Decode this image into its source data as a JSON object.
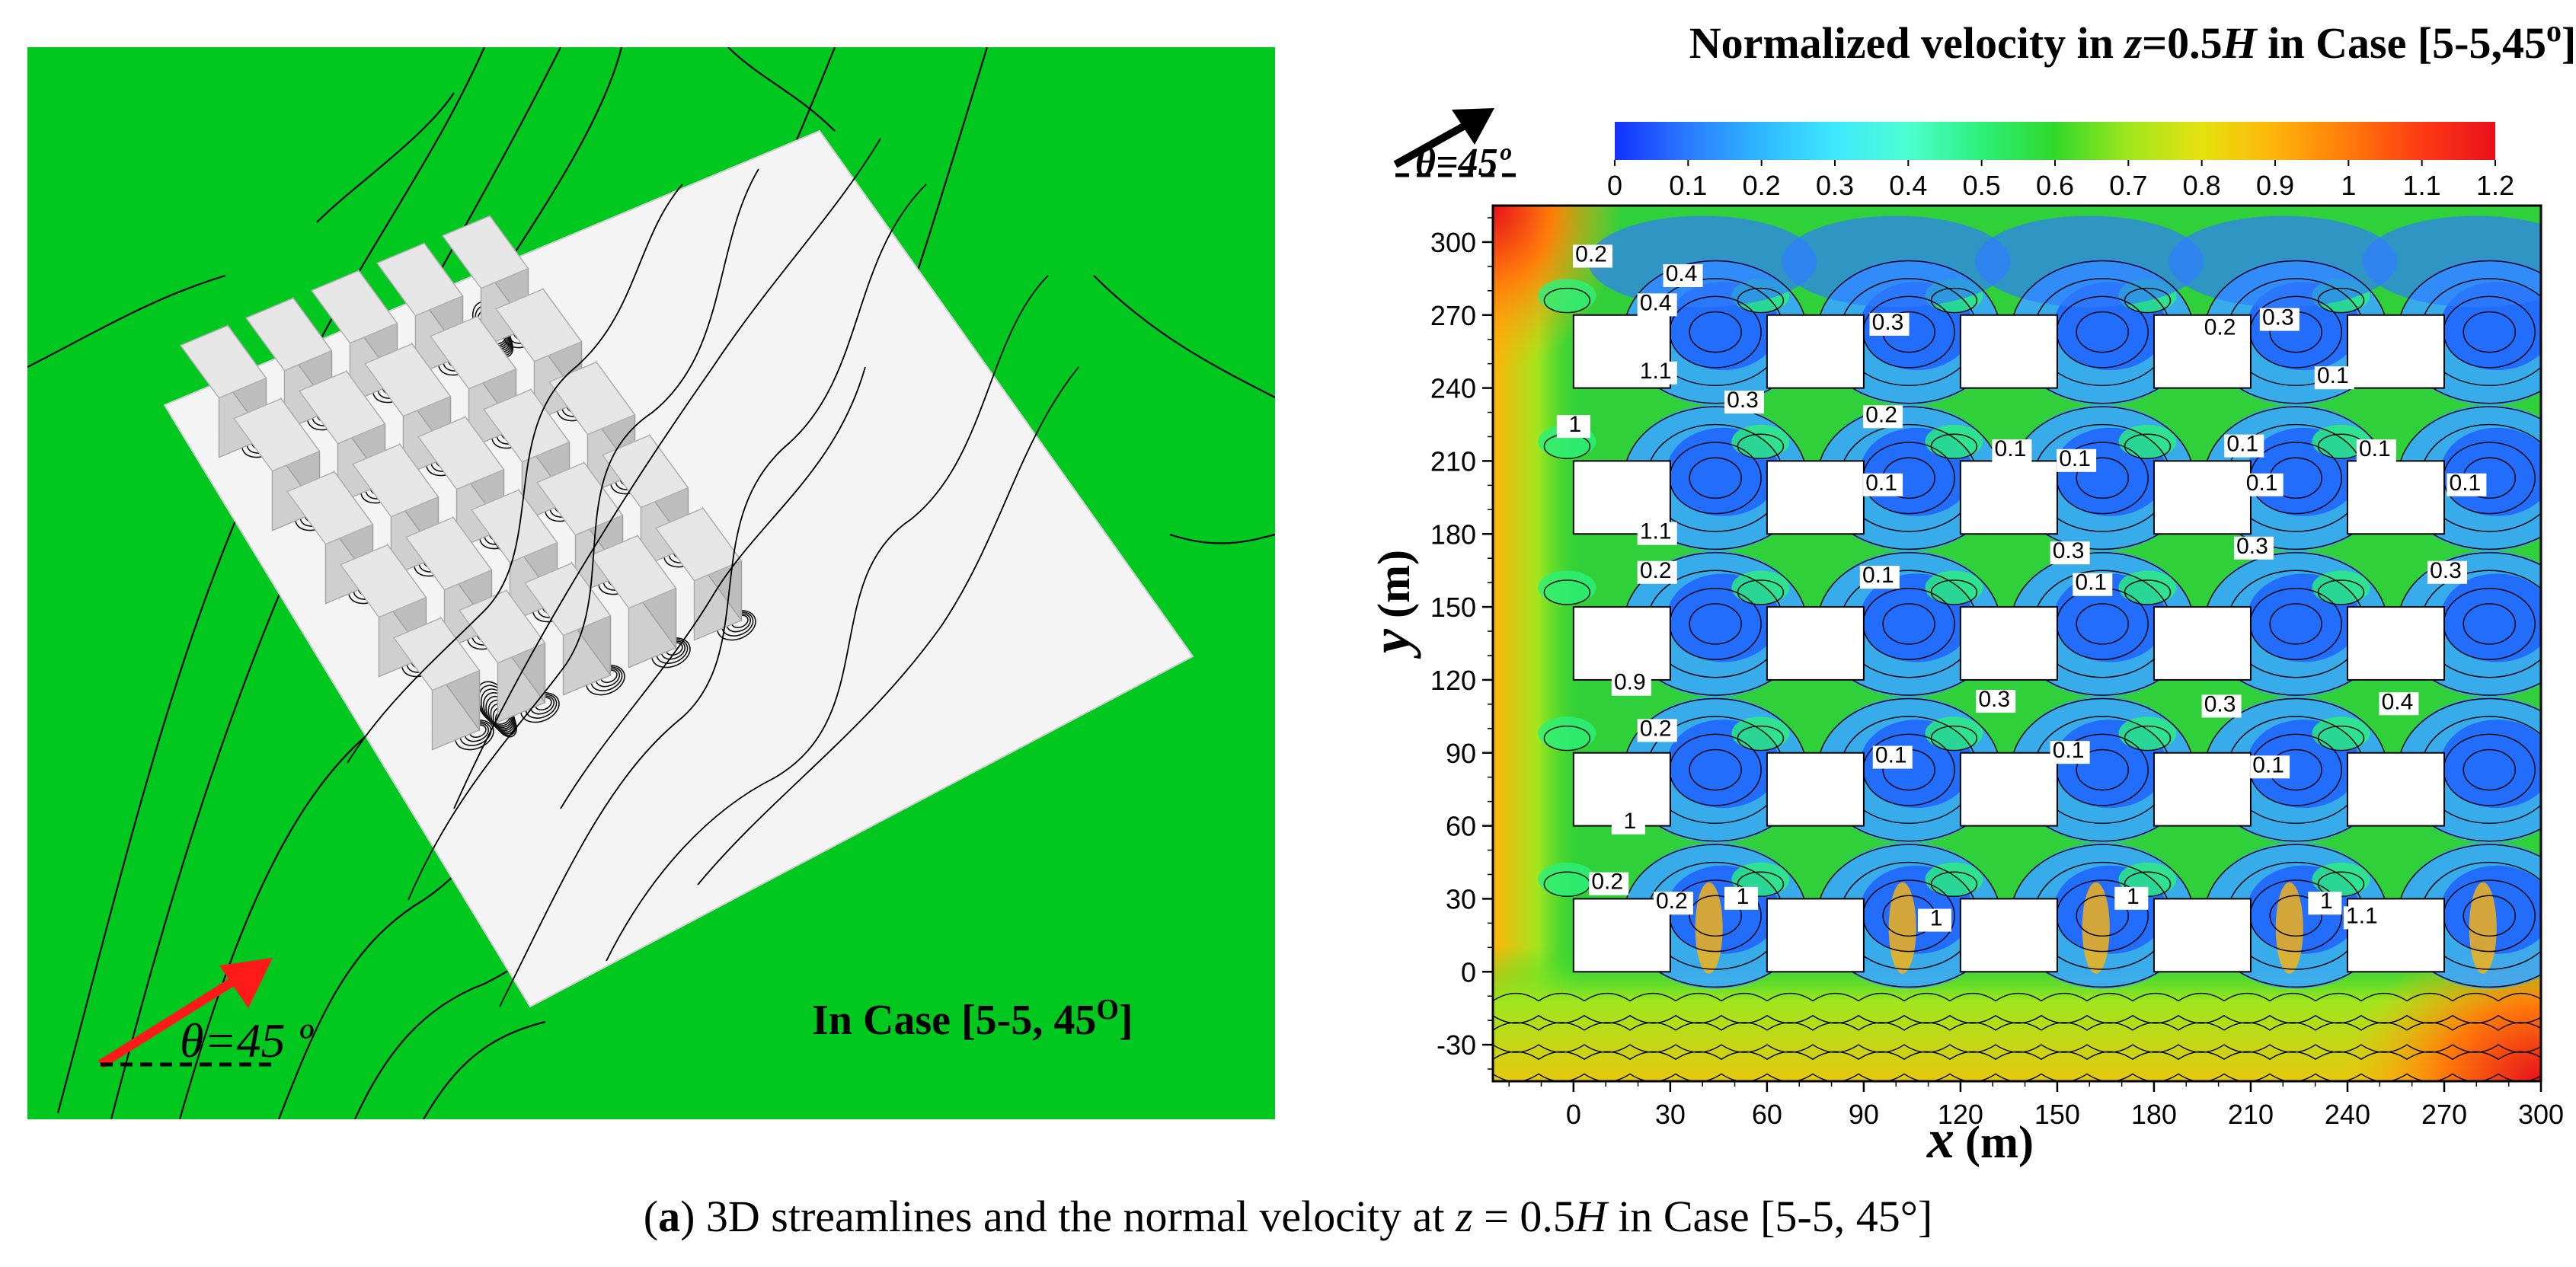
{
  "left": {
    "direction_label": "θ=45 º",
    "case_label": "In Case [5-5, 45",
    "case_degree": "O",
    "case_close": "]",
    "colors": {
      "background": "#00c81e",
      "floor": "#f4f4f4",
      "block_top": "#e6e6e6",
      "block_side": "#bdbdbd",
      "arrow": "#ff1a1a"
    }
  },
  "right": {
    "title_prefix": "Normalized  velocity  in ",
    "title_z": "z",
    "title_mid": "=0.5",
    "title_H": "H",
    "title_suffix": " in Case [5-5,45",
    "title_deg": "o",
    "title_close": "]",
    "direction_label": "θ=45º",
    "colorbar": {
      "ticks": [
        "0",
        "0.1",
        "0.2",
        "0.3",
        "0.4",
        "0.5",
        "0.6",
        "0.7",
        "0.8",
        "0.9",
        "1",
        "1.1",
        "1.2"
      ],
      "stops": [
        "#1430ff",
        "#2b7bff",
        "#2fb8ff",
        "#3ee8ff",
        "#4cffd0",
        "#2cf07a",
        "#30d82a",
        "#9fe61e",
        "#e6e20e",
        "#ffb40a",
        "#ff7a0a",
        "#ff3a14",
        "#e8101c"
      ]
    },
    "x_label": "x",
    "x_unit": "(m)",
    "y_label": "y",
    "y_unit": "(m)",
    "x_ticks": [
      "0",
      "30",
      "60",
      "90",
      "120",
      "150",
      "180",
      "210",
      "240",
      "270",
      "300"
    ],
    "y_ticks": [
      "-30",
      "0",
      "30",
      "60",
      "90",
      "120",
      "150",
      "180",
      "210",
      "240",
      "270",
      "300"
    ],
    "x_range": [
      -25,
      300
    ],
    "y_range": [
      -45,
      315
    ],
    "contour_labels": [
      "0.2",
      "0.4",
      "0.4",
      "0.3",
      "0.2",
      "0.3",
      "1.1",
      "0.3",
      "0.2",
      "0.1",
      "0.1",
      "0.1",
      "0.1",
      "1",
      "0.1",
      "0.1",
      "0.1",
      "0.1",
      "1.1",
      "0.3",
      "0.3",
      "0.2",
      "0.1",
      "0.1",
      "0.3",
      "0.9",
      "0.2",
      "0.3",
      "0.3",
      "0.4",
      "0.1",
      "0.1",
      "0.1",
      "1",
      "0.2",
      "0.2",
      "1",
      "1",
      "1",
      "1",
      "1.1"
    ]
  },
  "caption": {
    "letter": "a",
    "text_part1": " 3D streamlines and the normal velocity at ",
    "z": "z",
    "text_part2": " = 0.5",
    "H": "H",
    "text_part3": " in Case [5-5, 45°]"
  }
}
